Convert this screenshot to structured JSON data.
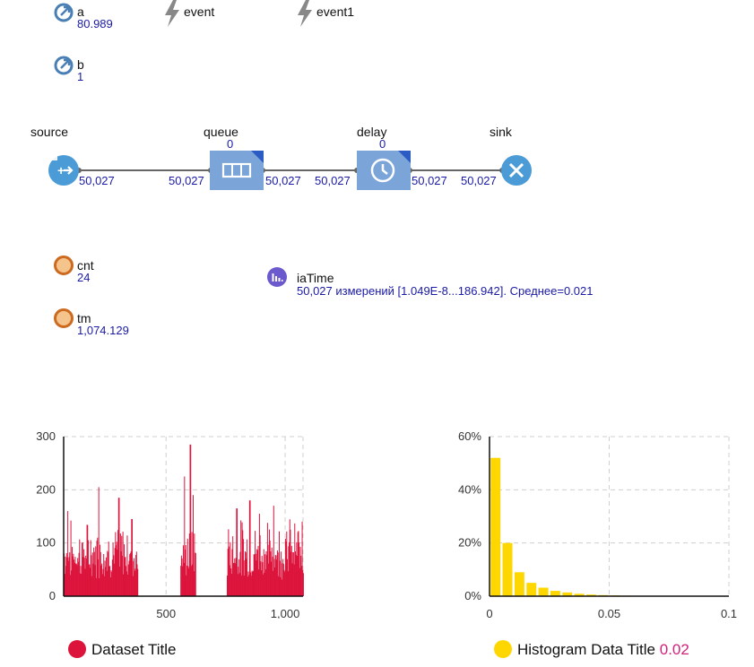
{
  "parameters": [
    {
      "name": "a",
      "value": "80.989"
    },
    {
      "name": "b",
      "value": "1"
    }
  ],
  "events": [
    {
      "name": "event"
    },
    {
      "name": "event1"
    }
  ],
  "flowchart": {
    "source": {
      "label": "source",
      "out": "50,027"
    },
    "queue": {
      "label": "queue",
      "size": "0",
      "in": "50,027",
      "out": "50,027"
    },
    "delay": {
      "label": "delay",
      "size": "0",
      "in": "50,027",
      "out": "50,027"
    },
    "sink": {
      "label": "sink",
      "in": "50,027"
    }
  },
  "variables": [
    {
      "name": "cnt",
      "value": "24"
    },
    {
      "name": "tm",
      "value": "1,074.129"
    }
  ],
  "statistics": {
    "name": "iaTime",
    "summary": "50,027 измерений [1.049E-8...186.942]. Среднее=0.021"
  },
  "colors": {
    "dataset": "#dc143c",
    "histogram": "#ffd700",
    "element": "#4a9bd6",
    "block": "#7ba4d9",
    "variable": "#cc6a1f",
    "stats": "#6a5acd"
  },
  "chart_data": [
    {
      "type": "bar",
      "title": "",
      "xlim": [
        70,
        1075
      ],
      "ylim": [
        0,
        300
      ],
      "xticks": [
        "500",
        "1,000"
      ],
      "xtick_values": [
        500,
        1000
      ],
      "yticks": [
        "0",
        "100",
        "200",
        "300"
      ],
      "ytick_values": [
        0,
        100,
        200,
        300
      ],
      "grid": true,
      "legend": "bottom",
      "series": [
        {
          "name": "Dataset Title",
          "segments": [
            {
              "x_start": 70,
              "x_end": 380,
              "typical_max": 150,
              "peaks": [
                [
                  85,
                  160
                ],
                [
                  215,
                  205
                ],
                [
                  300,
                  185
                ],
                [
                  355,
                  145
                ]
              ]
            },
            {
              "x_start": 560,
              "x_end": 625,
              "typical_max": 150,
              "peaks": [
                [
                  575,
                  225
                ],
                [
                  600,
                  285
                ],
                [
                  612,
                  190
                ]
              ]
            },
            {
              "x_start": 755,
              "x_end": 1075,
              "typical_max": 155,
              "peaks": [
                [
                  795,
                  165
                ],
                [
                  850,
                  180
                ],
                [
                  890,
                  155
                ],
                [
                  950,
                  170
                ],
                [
                  1020,
                  125
                ],
                [
                  1070,
                  140
                ]
              ]
            }
          ]
        }
      ]
    },
    {
      "type": "bar",
      "title": "",
      "xlim": [
        0,
        0.1
      ],
      "ylim": [
        0,
        0.6
      ],
      "xticks": [
        "0",
        "0.05",
        "0.1"
      ],
      "xtick_values": [
        0,
        0.05,
        0.1
      ],
      "yticks": [
        "0%",
        "20%",
        "40%",
        "60%"
      ],
      "ytick_values": [
        0,
        0.2,
        0.4,
        0.6
      ],
      "grid": true,
      "legend": "bottom",
      "bin_width": 0.005,
      "series": [
        {
          "name": "Histogram Data Title",
          "legend_value": "0.02",
          "values": [
            0.52,
            0.2,
            0.09,
            0.05,
            0.032,
            0.02,
            0.014,
            0.009,
            0.006,
            0.004,
            0.003,
            0.002,
            0.0015,
            0.001,
            0.0007,
            0.0005,
            0.0003,
            0.0002,
            0.0001,
            0.0001
          ]
        }
      ]
    }
  ]
}
